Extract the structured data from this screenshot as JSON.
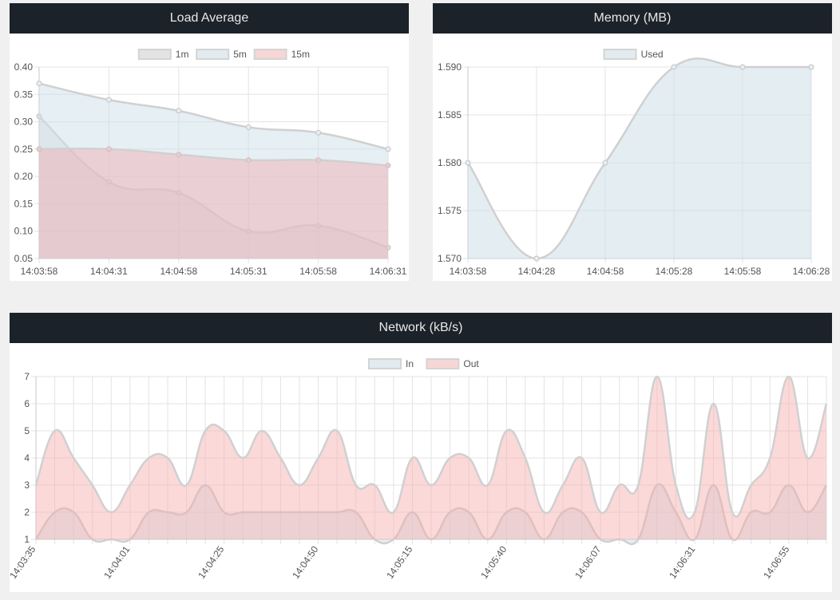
{
  "colors": {
    "header_bg": "#1c2229",
    "grid": "#e3e3e3",
    "axis_text": "#555555",
    "line": "#d0d0d0",
    "fill_1m": "rgba(215,215,215,0.45)",
    "fill_5m": "rgba(206,224,232,0.5)",
    "fill_15m": "rgba(240,170,175,0.45)",
    "fill_in": "rgba(206,224,232,0.55)",
    "fill_out": "rgba(246,170,170,0.45)",
    "legend_1m": "#e3e3e3",
    "legend_5m": "#e2ebef",
    "legend_15m": "#f7d6d6"
  },
  "chart_data": [
    {
      "id": "load",
      "type": "area",
      "title": "Load Average",
      "x": [
        "14:03:58",
        "14:04:31",
        "14:04:58",
        "14:05:31",
        "14:05:58",
        "14:06:31"
      ],
      "series": [
        {
          "name": "1m",
          "values": [
            0.31,
            0.19,
            0.17,
            0.1,
            0.11,
            0.07
          ]
        },
        {
          "name": "5m",
          "values": [
            0.37,
            0.34,
            0.32,
            0.29,
            0.28,
            0.25
          ]
        },
        {
          "name": "15m",
          "values": [
            0.25,
            0.25,
            0.24,
            0.23,
            0.23,
            0.22
          ]
        }
      ],
      "ylim": [
        0.05,
        0.4
      ],
      "yticks": [
        "0.40",
        "0.35",
        "0.30",
        "0.25",
        "0.20",
        "0.15",
        "0.10",
        "0.05"
      ],
      "grid": true,
      "legend": "top-center"
    },
    {
      "id": "memory",
      "type": "area",
      "title": "Memory (MB)",
      "x": [
        "14:03:58",
        "14:04:28",
        "14:04:58",
        "14:05:28",
        "14:05:58",
        "14:06:28"
      ],
      "series": [
        {
          "name": "Used",
          "values": [
            1.58,
            1.57,
            1.58,
            1.59,
            1.59,
            1.59
          ]
        }
      ],
      "ylim": [
        1.57,
        1.59
      ],
      "yticks": [
        "1.590",
        "1.585",
        "1.580",
        "1.575",
        "1.570"
      ],
      "grid": true,
      "legend": "top-center"
    },
    {
      "id": "network",
      "type": "area",
      "title": "Network (kB/s)",
      "xtick_labels": [
        "14:03:35",
        "14:04:01",
        "14:04:25",
        "14:04:50",
        "14:05:15",
        "14:05:40",
        "14:06:07",
        "14:06:31",
        "14:06:55"
      ],
      "series": [
        {
          "name": "In",
          "values": [
            1,
            2,
            2,
            1,
            1,
            1,
            2,
            2,
            2,
            3,
            2,
            2,
            2,
            2,
            2,
            2,
            2,
            2,
            1,
            1,
            2,
            1,
            2,
            2,
            1,
            2,
            2,
            1,
            2,
            2,
            1,
            1,
            1,
            3,
            2,
            1,
            3,
            1,
            2,
            2,
            3,
            2,
            3
          ]
        },
        {
          "name": "Out",
          "values": [
            3,
            5,
            4,
            3,
            2,
            3,
            4,
            4,
            3,
            5,
            5,
            4,
            5,
            4,
            3,
            4,
            5,
            3,
            3,
            2,
            4,
            3,
            4,
            4,
            3,
            5,
            4,
            2,
            3,
            4,
            2,
            3,
            3,
            7,
            3,
            2,
            6,
            2,
            3,
            4,
            7,
            4,
            6
          ]
        }
      ],
      "ylim": [
        1,
        7
      ],
      "yticks": [
        "7",
        "6",
        "5",
        "4",
        "3",
        "2",
        "1"
      ],
      "grid": true,
      "legend": "top-center"
    }
  ]
}
